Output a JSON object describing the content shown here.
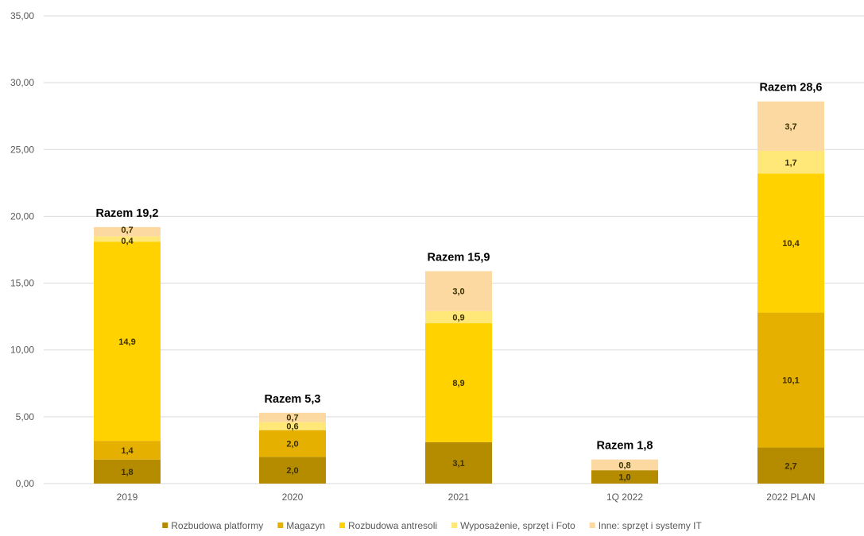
{
  "chart_data": {
    "type": "bar",
    "stacked": true,
    "categories": [
      "2019",
      "2020",
      "2021",
      "1Q 2022",
      "2022 PLAN"
    ],
    "series": [
      {
        "name": "Rozbudowa platformy",
        "color": "#b58b00",
        "values": [
          1.8,
          2.0,
          3.1,
          1.0,
          2.7
        ],
        "labels": [
          "1,8",
          "2,0",
          "3,1",
          "1,0",
          "2,7"
        ]
      },
      {
        "name": "Magazyn",
        "color": "#e6b000",
        "values": [
          1.4,
          2.0,
          0,
          0,
          10.1
        ],
        "labels": [
          "1,4",
          "2,0",
          "",
          "",
          "10,1"
        ]
      },
      {
        "name": "Rozbudowa antresoli",
        "color": "#ffd200",
        "values": [
          14.9,
          0,
          8.9,
          0,
          10.4
        ],
        "labels": [
          "14,9",
          "",
          "8,9",
          "",
          "10,4"
        ]
      },
      {
        "name": "Wyposażenie, sprzęt i Foto",
        "color": "#ffe878",
        "values": [
          0.4,
          0.6,
          0.9,
          0,
          1.7
        ],
        "labels": [
          "0,4",
          "0,6",
          "0,9",
          "",
          "1,7"
        ]
      },
      {
        "name": "Inne: sprzęt i systemy IT",
        "color": "#fdd9a2",
        "values": [
          0.7,
          0.7,
          3.0,
          0.8,
          3.7
        ],
        "labels": [
          "0,7",
          "0,7",
          "3,0",
          "0,8",
          "3,7"
        ]
      }
    ],
    "totals": [
      {
        "value": 19.2,
        "label": "Razem 19,2"
      },
      {
        "value": 5.3,
        "label": "Razem 5,3"
      },
      {
        "value": 15.9,
        "label": "Razem 15,9"
      },
      {
        "value": 1.8,
        "label": "Razem 1,8"
      },
      {
        "value": 28.6,
        "label": "Razem 28,6"
      }
    ],
    "ylim": [
      0,
      35
    ],
    "yticks": [
      {
        "value": 0,
        "label": "0,00"
      },
      {
        "value": 5,
        "label": "5,00"
      },
      {
        "value": 10,
        "label": "10,00"
      },
      {
        "value": 15,
        "label": "15,00"
      },
      {
        "value": 20,
        "label": "20,00"
      },
      {
        "value": 25,
        "label": "25,00"
      },
      {
        "value": 30,
        "label": "30,00"
      },
      {
        "value": 35,
        "label": "35,00"
      }
    ],
    "grid": true,
    "legend_position": "bottom",
    "colors": {
      "grid": "#d9d9d9",
      "axis_text": "#595959",
      "total_text": "#000000",
      "value_text": "#3a3000"
    }
  }
}
